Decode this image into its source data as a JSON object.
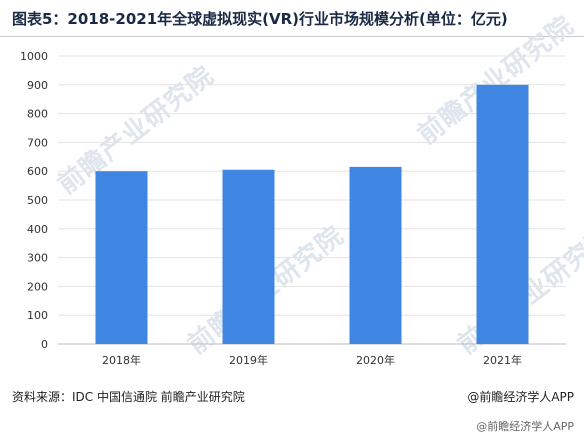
{
  "title": "图表5：2018-2021年全球虚拟现实(VR)行业市场规模分析(单位：亿元)",
  "source": "资料来源：IDC 中国信通院 前瞻产业研究院",
  "brand": "@前瞻经济学人APP",
  "watermark_text": "前瞻产业研究院",
  "bottom_watermark": "@前瞻经济学人APP",
  "colors": {
    "bar": "#3f86e3",
    "grid": "#e3e3e3",
    "axis_text": "#333333"
  },
  "chart_data": {
    "type": "bar",
    "categories": [
      "2018年",
      "2019年",
      "2020年",
      "2021年"
    ],
    "values": [
      600,
      605,
      615,
      900
    ],
    "title": "图表5：2018-2021年全球虚拟现实(VR)行业市场规模分析(单位：亿元)",
    "xlabel": "",
    "ylabel": "",
    "ylim": [
      0,
      1000
    ],
    "yticks": [
      0,
      100,
      200,
      300,
      400,
      500,
      600,
      700,
      800,
      900,
      1000
    ],
    "grid": true
  }
}
